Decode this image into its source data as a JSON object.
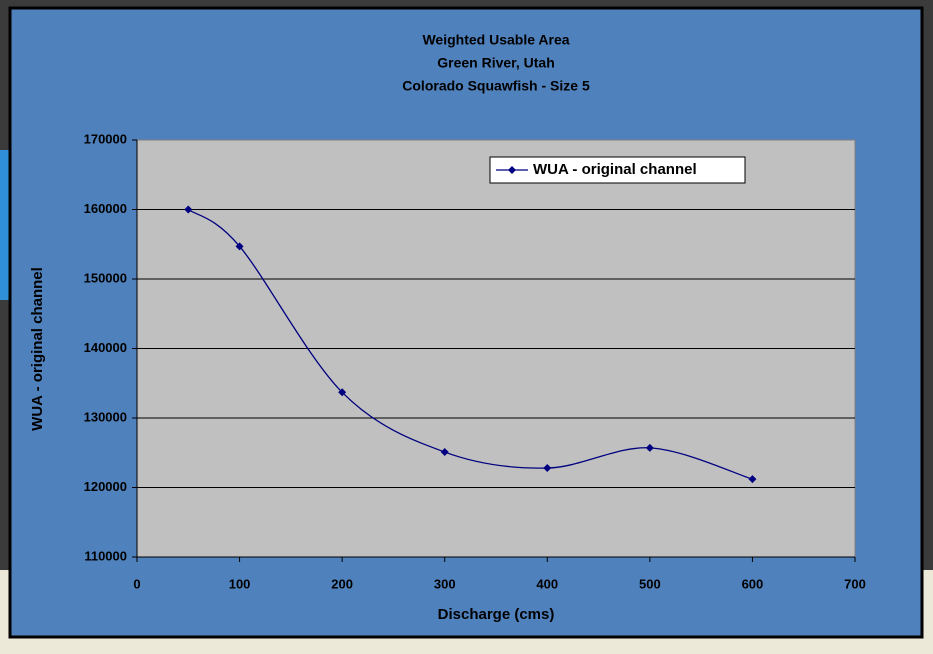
{
  "chart_data": {
    "type": "line",
    "title": [
      "Weighted Usable Area",
      "Green River, Utah",
      "Colorado Squawfish - Size 5"
    ],
    "x_label": "Discharge (cms)",
    "y_label": "WUA - original channel",
    "x": [
      50,
      100,
      200,
      300,
      400,
      500,
      600
    ],
    "series": [
      {
        "name": "WUA - original channel",
        "color": "#000080",
        "values": [
          160000,
          154700,
          133700,
          125100,
          122800,
          125700,
          121200
        ]
      }
    ],
    "xlim": [
      0,
      700
    ],
    "xticks": [
      0,
      100,
      200,
      300,
      400,
      500,
      600,
      700
    ],
    "ylim": [
      110000,
      170000
    ],
    "yticks": [
      110000,
      120000,
      130000,
      140000,
      150000,
      160000,
      170000
    ],
    "grid": true,
    "legend": "top-right",
    "smooth": true
  }
}
